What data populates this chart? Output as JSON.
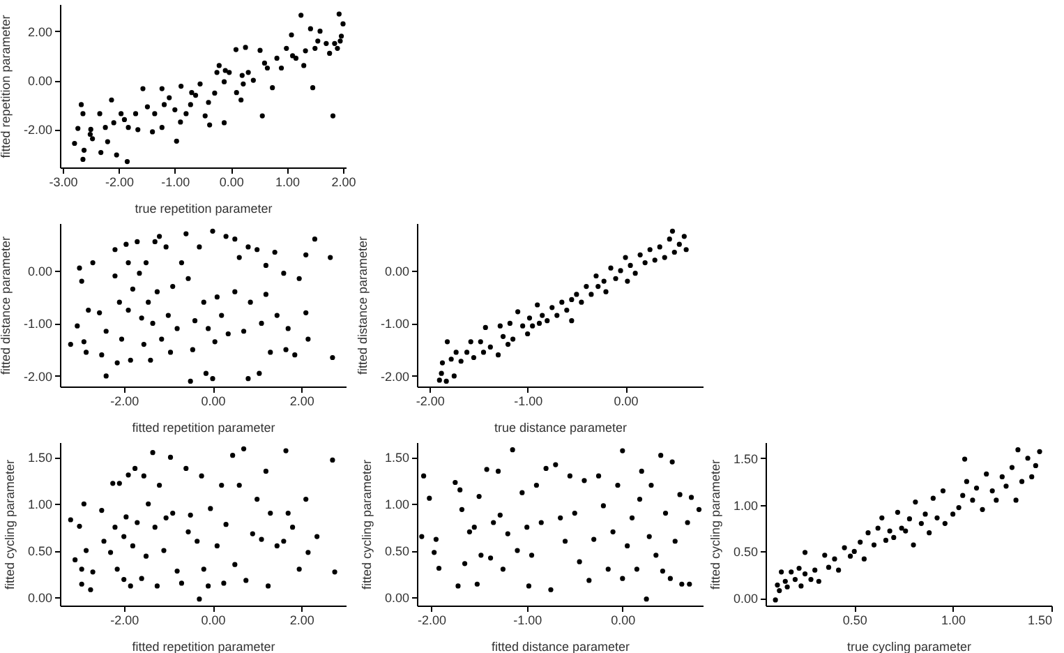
{
  "chart_data": [
    {
      "type": "scatter",
      "xlabel": "true repetition parameter",
      "ylabel": "fitted repetition parameter",
      "marker": "circle",
      "xlim": [
        -3.05,
        2.05
      ],
      "ylim": [
        -3.55,
        3.1
      ],
      "xticks": [
        {
          "value": -3,
          "label": "-3.00"
        },
        {
          "value": -2,
          "label": "-2.00"
        },
        {
          "value": -1,
          "label": "-1.00"
        },
        {
          "value": 0,
          "label": "0.00"
        },
        {
          "value": 1,
          "label": "1.00"
        },
        {
          "value": 2,
          "label": "2.00"
        }
      ],
      "yticks": [
        {
          "value": -2,
          "label": "-2.00"
        },
        {
          "value": 0,
          "label": "0.00"
        },
        {
          "value": 2,
          "label": "2.00"
        }
      ],
      "series": [
        {
          "color": "#000000",
          "x": [
            -2.79,
            -2.73,
            -2.67,
            -2.64,
            -2.62,
            -2.64,
            -2.51,
            -2.47,
            -2.34,
            -2.32,
            -2.24,
            -2.13,
            -2.09,
            -2.04,
            -1.85,
            -1.96,
            -1.83,
            -1.7,
            -1.66,
            -1.57,
            -1.49,
            -1.36,
            -1.23,
            -1.19,
            -1.23,
            -1.1,
            -0.97,
            -0.89,
            -0.8,
            -0.72,
            -0.63,
            -0.55,
            -0.46,
            -0.38,
            -0.29,
            -0.25,
            -0.21,
            -0.12,
            -0.03,
            0.09,
            -0.12,
            0.18,
            0.26,
            0.22,
            0.31,
            0.52,
            0.56,
            0.65,
            0.74,
            0.82,
            0.99,
            1.08,
            1.16,
            1.25,
            1.33,
            1.42,
            1.46,
            1.55,
            1.59,
            1.76,
            1.82,
            1.85,
            1.93,
            1.97,
            2.0,
            -2.5,
            -2.2,
            -1.9,
            -1.4,
            -1.0,
            -0.9,
            -0.7,
            -0.4,
            -0.1,
            0.1,
            0.2,
            0.4,
            0.6,
            0.9,
            1.1,
            1.3,
            1.5,
            1.7,
            1.9,
            1.95
          ],
          "values": [
            -2.57,
            -1.96,
            -0.99,
            -1.36,
            -2.85,
            -3.22,
            -2.2,
            -2.38,
            -1.36,
            -2.94,
            -1.92,
            -0.8,
            -1.73,
            -3.04,
            -3.31,
            -1.36,
            -1.92,
            -1.36,
            -2.01,
            -0.34,
            -1.08,
            -1.36,
            -0.34,
            -0.99,
            -1.92,
            -0.71,
            -2.48,
            -0.24,
            -1.36,
            -0.99,
            -0.61,
            -0.15,
            -1.45,
            -1.82,
            -0.52,
            0.32,
            0.6,
            -0.06,
            0.32,
            1.25,
            -1.73,
            -0.8,
            1.34,
            -0.15,
            0.32,
            1.22,
            -1.45,
            0.5,
            -0.3,
            0.9,
            1.3,
            1.85,
            0.9,
            2.65,
            1.2,
            2.1,
            -0.3,
            1.6,
            2.0,
            1.1,
            -1.45,
            1.5,
            2.7,
            1.8,
            2.3,
            -2.0,
            -2.5,
            -1.6,
            -2.1,
            -1.2,
            -1.7,
            -0.5,
            -0.9,
            0.4,
            -0.5,
            0.2,
            0.0,
            0.7,
            0.5,
            1.0,
            0.6,
            1.3,
            1.5,
            1.3,
            1.6
          ]
        }
      ]
    },
    {
      "type": "scatter",
      "xlabel": "fitted repetition parameter",
      "ylabel": "fitted distance parameter",
      "marker": "circle",
      "xlim": [
        -3.44,
        3.0
      ],
      "ylim": [
        -2.2,
        0.9
      ],
      "xticks": [
        {
          "value": -2,
          "label": "-2.00"
        },
        {
          "value": 0,
          "label": "0.00"
        },
        {
          "value": 2,
          "label": "2.00"
        }
      ],
      "yticks": [
        {
          "value": -2,
          "label": "-2.00"
        },
        {
          "value": -1,
          "label": "-1.00"
        },
        {
          "value": 0,
          "label": "0.00"
        }
      ],
      "series": [
        {
          "color": "#000000",
          "x": [
            -3.2,
            -3.05,
            -3.0,
            -2.95,
            -2.9,
            -2.85,
            -2.8,
            -2.7,
            -2.55,
            -2.5,
            -2.4,
            -2.4,
            -2.2,
            -2.2,
            -2.15,
            -2.1,
            -2.05,
            -1.95,
            -1.9,
            -1.9,
            -1.85,
            -1.8,
            -1.7,
            -1.65,
            -1.6,
            -1.55,
            -1.5,
            -1.45,
            -1.4,
            -1.35,
            -1.3,
            -1.25,
            -1.2,
            -1.15,
            -1.05,
            -1.0,
            -0.95,
            -0.9,
            -0.8,
            -0.7,
            -0.6,
            -0.55,
            -0.5,
            -0.45,
            -0.4,
            -0.3,
            -0.2,
            -0.15,
            -0.1,
            0.0,
            0.0,
            0.05,
            0.1,
            0.2,
            0.3,
            0.35,
            0.5,
            0.5,
            0.6,
            0.7,
            0.8,
            0.8,
            0.85,
            1.0,
            1.05,
            1.1,
            1.2,
            1.2,
            1.3,
            1.4,
            1.45,
            1.6,
            1.65,
            1.7,
            1.85,
            1.95,
            2.1,
            2.1,
            2.15,
            2.3,
            2.65,
            2.7
          ],
          "values": [
            -1.4,
            -1.05,
            0.05,
            -0.2,
            -1.35,
            -1.55,
            -0.75,
            0.15,
            -0.8,
            -1.6,
            -1.15,
            -2.0,
            0.4,
            -0.1,
            -1.75,
            -0.6,
            -1.3,
            0.5,
            0.15,
            -0.75,
            -1.7,
            -0.35,
            0.55,
            -0.05,
            -0.9,
            -1.4,
            0.15,
            -0.6,
            -1.7,
            -1.0,
            0.55,
            -0.4,
            0.65,
            -1.3,
            0.45,
            -0.85,
            -1.55,
            -0.3,
            -1.1,
            0.15,
            0.7,
            -0.15,
            -2.1,
            -1.5,
            -0.95,
            0.45,
            -0.6,
            -1.95,
            -1.1,
            0.75,
            -2.05,
            -1.35,
            -0.5,
            -0.85,
            0.65,
            -1.2,
            0.6,
            -0.4,
            0.25,
            -1.15,
            0.45,
            -2.05,
            -0.6,
            0.4,
            -1.95,
            -1.0,
            0.1,
            -0.45,
            -1.55,
            0.35,
            -0.85,
            -0.05,
            -1.5,
            -1.1,
            -1.6,
            -0.15,
            0.3,
            -0.8,
            -1.3,
            0.6,
            0.25,
            -1.65
          ]
        }
      ]
    },
    {
      "type": "scatter",
      "xlabel": "true distance parameter",
      "ylabel": "fitted distance parameter",
      "marker": "circle",
      "xlim": [
        -2.13,
        0.79
      ],
      "ylim": [
        -2.2,
        0.9
      ],
      "xticks": [
        {
          "value": -2,
          "label": "-2.00"
        },
        {
          "value": -1,
          "label": "-1.00"
        },
        {
          "value": 0,
          "label": "0.00"
        }
      ],
      "yticks": [
        {
          "value": -2,
          "label": "-2.00"
        },
        {
          "value": -1,
          "label": "-1.00"
        },
        {
          "value": 0,
          "label": "0.00"
        }
      ],
      "series": [
        {
          "color": "#000000",
          "x": [
            -1.9,
            -1.88,
            -1.87,
            -1.83,
            -1.82,
            -1.78,
            -1.75,
            -1.73,
            -1.68,
            -1.62,
            -1.58,
            -1.55,
            -1.48,
            -1.45,
            -1.43,
            -1.38,
            -1.3,
            -1.28,
            -1.25,
            -1.2,
            -1.18,
            -1.15,
            -1.1,
            -1.05,
            -1.0,
            -0.98,
            -0.95,
            -0.9,
            -0.88,
            -0.85,
            -0.8,
            -0.75,
            -0.7,
            -0.65,
            -0.6,
            -0.55,
            -0.55,
            -0.5,
            -0.45,
            -0.4,
            -0.35,
            -0.3,
            -0.28,
            -0.22,
            -0.2,
            -0.15,
            -0.1,
            -0.05,
            0.0,
            0.02,
            0.05,
            0.1,
            0.15,
            0.2,
            0.25,
            0.3,
            0.35,
            0.4,
            0.45,
            0.48,
            0.5,
            0.55,
            0.6,
            0.62
          ],
          "values": [
            -2.08,
            -1.95,
            -1.75,
            -2.1,
            -1.35,
            -1.68,
            -2.0,
            -1.55,
            -1.72,
            -1.55,
            -1.35,
            -1.65,
            -1.35,
            -1.55,
            -1.08,
            -1.45,
            -1.6,
            -1.05,
            -1.25,
            -1.4,
            -1.0,
            -1.3,
            -0.78,
            -1.05,
            -1.2,
            -0.9,
            -1.05,
            -0.65,
            -1.0,
            -0.85,
            -0.95,
            -0.7,
            -0.85,
            -0.6,
            -0.75,
            -0.95,
            -0.55,
            -0.45,
            -0.6,
            -0.3,
            -0.45,
            -0.1,
            -0.3,
            -0.2,
            -0.4,
            0.05,
            -0.15,
            0.0,
            0.25,
            -0.2,
            0.1,
            -0.05,
            0.3,
            0.15,
            0.4,
            0.2,
            0.45,
            0.25,
            0.6,
            0.75,
            0.35,
            0.5,
            0.65,
            0.4
          ]
        }
      ]
    },
    {
      "type": "scatter",
      "xlabel": "fitted repetition parameter",
      "ylabel": "fitted cycling parameter",
      "marker": "circle",
      "xlim": [
        -3.44,
        3.0
      ],
      "ylim": [
        -0.09,
        1.66
      ],
      "xticks": [
        {
          "value": -2,
          "label": "-2.00"
        },
        {
          "value": 0,
          "label": "0.00"
        },
        {
          "value": 2,
          "label": "2.00"
        }
      ],
      "yticks": [
        {
          "value": 0,
          "label": "0.00"
        },
        {
          "value": 0.5,
          "label": "0.50"
        },
        {
          "value": 1,
          "label": "1.00"
        },
        {
          "value": 1.5,
          "label": "1.50"
        }
      ],
      "series": [
        {
          "color": "#000000",
          "x": [
            -3.2,
            -3.1,
            -3.0,
            -2.95,
            -2.95,
            -2.9,
            -2.85,
            -2.75,
            -2.7,
            -2.5,
            -2.45,
            -2.3,
            -2.25,
            -2.2,
            -2.15,
            -2.1,
            -2.0,
            -2.0,
            -1.95,
            -1.9,
            -1.85,
            -1.8,
            -1.75,
            -1.7,
            -1.6,
            -1.55,
            -1.5,
            -1.45,
            -1.35,
            -1.3,
            -1.25,
            -1.2,
            -1.1,
            -1.05,
            -0.95,
            -0.9,
            -0.8,
            -0.7,
            -0.6,
            -0.55,
            -0.5,
            -0.35,
            -0.3,
            -0.25,
            -0.2,
            -0.1,
            -0.05,
            0.1,
            0.2,
            0.25,
            0.3,
            0.45,
            0.5,
            0.6,
            0.7,
            0.75,
            0.9,
            1.0,
            1.1,
            1.2,
            1.25,
            1.3,
            1.45,
            1.6,
            1.65,
            1.7,
            1.8,
            1.95,
            2.1,
            2.15,
            2.35,
            2.7,
            2.75
          ],
          "values": [
            0.83,
            0.4,
            0.76,
            0.14,
            0.3,
            1.0,
            0.5,
            0.08,
            0.27,
            0.93,
            0.6,
            0.48,
            1.22,
            0.75,
            0.3,
            1.22,
            0.19,
            0.65,
            0.86,
            1.31,
            0.12,
            0.55,
            1.38,
            0.8,
            0.2,
            1.3,
            0.44,
            1.0,
            1.55,
            0.75,
            0.12,
            1.2,
            0.5,
            0.85,
            1.5,
            0.9,
            0.28,
            0.15,
            1.38,
            0.7,
            0.88,
            0.6,
            -0.02,
            1.3,
            0.3,
            0.12,
            0.95,
            0.55,
            1.2,
            0.15,
            0.78,
            1.52,
            0.35,
            1.2,
            1.59,
            0.18,
            0.68,
            1.05,
            0.62,
            1.35,
            0.12,
            0.9,
            0.55,
            0.6,
            1.57,
            0.9,
            0.75,
            0.3,
            1.05,
            0.48,
            0.65,
            1.47,
            0.27
          ]
        }
      ]
    },
    {
      "type": "scatter",
      "xlabel": "fitted distance parameter",
      "ylabel": "fitted cycling parameter",
      "marker": "circle",
      "xlim": [
        -2.15,
        0.84
      ],
      "ylim": [
        -0.09,
        1.66
      ],
      "xticks": [
        {
          "value": -2,
          "label": "-2.00"
        },
        {
          "value": -1,
          "label": "-1.00"
        },
        {
          "value": 0,
          "label": "0.00"
        }
      ],
      "yticks": [
        {
          "value": 0,
          "label": "0.00"
        },
        {
          "value": 0.5,
          "label": "0.50"
        },
        {
          "value": 1,
          "label": "1.00"
        },
        {
          "value": 1.5,
          "label": "1.50"
        }
      ],
      "series": [
        {
          "color": "#000000",
          "x": [
            -2.1,
            -2.08,
            -2.02,
            -1.97,
            -1.95,
            -1.92,
            -1.75,
            -1.72,
            -1.7,
            -1.68,
            -1.65,
            -1.6,
            -1.55,
            -1.52,
            -1.5,
            -1.48,
            -1.42,
            -1.38,
            -1.35,
            -1.3,
            -1.28,
            -1.25,
            -1.2,
            -1.15,
            -1.1,
            -1.05,
            -1.0,
            -0.98,
            -0.95,
            -0.9,
            -0.85,
            -0.8,
            -0.75,
            -0.7,
            -0.65,
            -0.6,
            -0.55,
            -0.5,
            -0.45,
            -0.4,
            -0.35,
            -0.3,
            -0.25,
            -0.2,
            -0.15,
            -0.1,
            -0.05,
            0.0,
            0.0,
            0.05,
            0.1,
            0.15,
            0.18,
            0.2,
            0.25,
            0.28,
            0.3,
            0.35,
            0.4,
            0.42,
            0.45,
            0.5,
            0.52,
            0.55,
            0.6,
            0.62,
            0.68,
            0.7,
            0.72,
            0.8
          ],
          "values": [
            0.65,
            1.3,
            1.06,
            0.48,
            0.62,
            0.31,
            1.23,
            0.12,
            1.15,
            0.94,
            0.36,
            0.7,
            0.75,
            0.14,
            1.08,
            0.45,
            1.37,
            0.42,
            0.8,
            1.35,
            0.88,
            0.3,
            0.68,
            1.58,
            0.5,
            1.12,
            0.75,
            0.12,
            0.45,
            1.2,
            0.8,
            1.38,
            0.08,
            1.42,
            0.85,
            0.6,
            1.3,
            0.9,
            0.38,
            1.25,
            0.18,
            0.62,
            1.3,
            0.98,
            0.3,
            0.7,
            1.2,
            0.2,
            1.57,
            0.55,
            0.85,
            0.3,
            1.05,
            1.35,
            -0.02,
            0.65,
            1.2,
            0.45,
            1.52,
            0.28,
            0.9,
            0.2,
            1.45,
            0.6,
            1.1,
            0.14,
            0.8,
            0.14,
            1.07,
            0.94
          ]
        }
      ]
    },
    {
      "type": "scatter",
      "xlabel": "true cycling parameter",
      "ylabel": "fitted cycling parameter",
      "marker": "circle",
      "xlim": [
        0.05,
        1.5
      ],
      "ylim": [
        -0.08,
        1.67
      ],
      "xticks": [
        {
          "value": 0.5,
          "label": "0.50"
        },
        {
          "value": 1,
          "label": "1.00"
        },
        {
          "value": 1.5,
          "label": "1.50"
        }
      ],
      "yticks": [
        {
          "value": 0,
          "label": "0.00"
        },
        {
          "value": 0.5,
          "label": "0.50"
        },
        {
          "value": 1,
          "label": "1.00"
        },
        {
          "value": 1.5,
          "label": "1.50"
        }
      ],
      "series": [
        {
          "color": "#000000",
          "x": [
            0.1,
            0.11,
            0.12,
            0.13,
            0.15,
            0.16,
            0.18,
            0.2,
            0.22,
            0.23,
            0.25,
            0.25,
            0.28,
            0.3,
            0.32,
            0.35,
            0.37,
            0.4,
            0.42,
            0.45,
            0.48,
            0.5,
            0.53,
            0.55,
            0.57,
            0.6,
            0.62,
            0.64,
            0.66,
            0.68,
            0.7,
            0.72,
            0.74,
            0.76,
            0.78,
            0.8,
            0.81,
            0.84,
            0.86,
            0.88,
            0.9,
            0.92,
            0.95,
            0.96,
            1.0,
            1.03,
            1.05,
            1.06,
            1.07,
            1.1,
            1.12,
            1.15,
            1.17,
            1.2,
            1.22,
            1.25,
            1.27,
            1.3,
            1.32,
            1.33,
            1.35,
            1.38,
            1.4,
            1.42,
            1.44
          ],
          "values": [
            -0.02,
            0.14,
            0.08,
            0.28,
            0.18,
            0.12,
            0.28,
            0.2,
            0.32,
            0.13,
            0.26,
            0.49,
            0.2,
            0.3,
            0.18,
            0.46,
            0.33,
            0.42,
            0.3,
            0.54,
            0.45,
            0.5,
            0.6,
            0.42,
            0.7,
            0.57,
            0.75,
            0.86,
            0.62,
            0.72,
            0.65,
            0.92,
            0.75,
            0.72,
            0.85,
            0.57,
            1.03,
            0.8,
            0.9,
            0.7,
            1.07,
            0.86,
            1.15,
            0.8,
            0.9,
            0.97,
            1.1,
            1.49,
            1.25,
            1.05,
            1.18,
            0.95,
            1.33,
            1.15,
            1.05,
            1.3,
            1.2,
            1.4,
            1.05,
            1.59,
            1.25,
            1.5,
            1.3,
            1.42,
            1.57
          ]
        }
      ]
    }
  ]
}
